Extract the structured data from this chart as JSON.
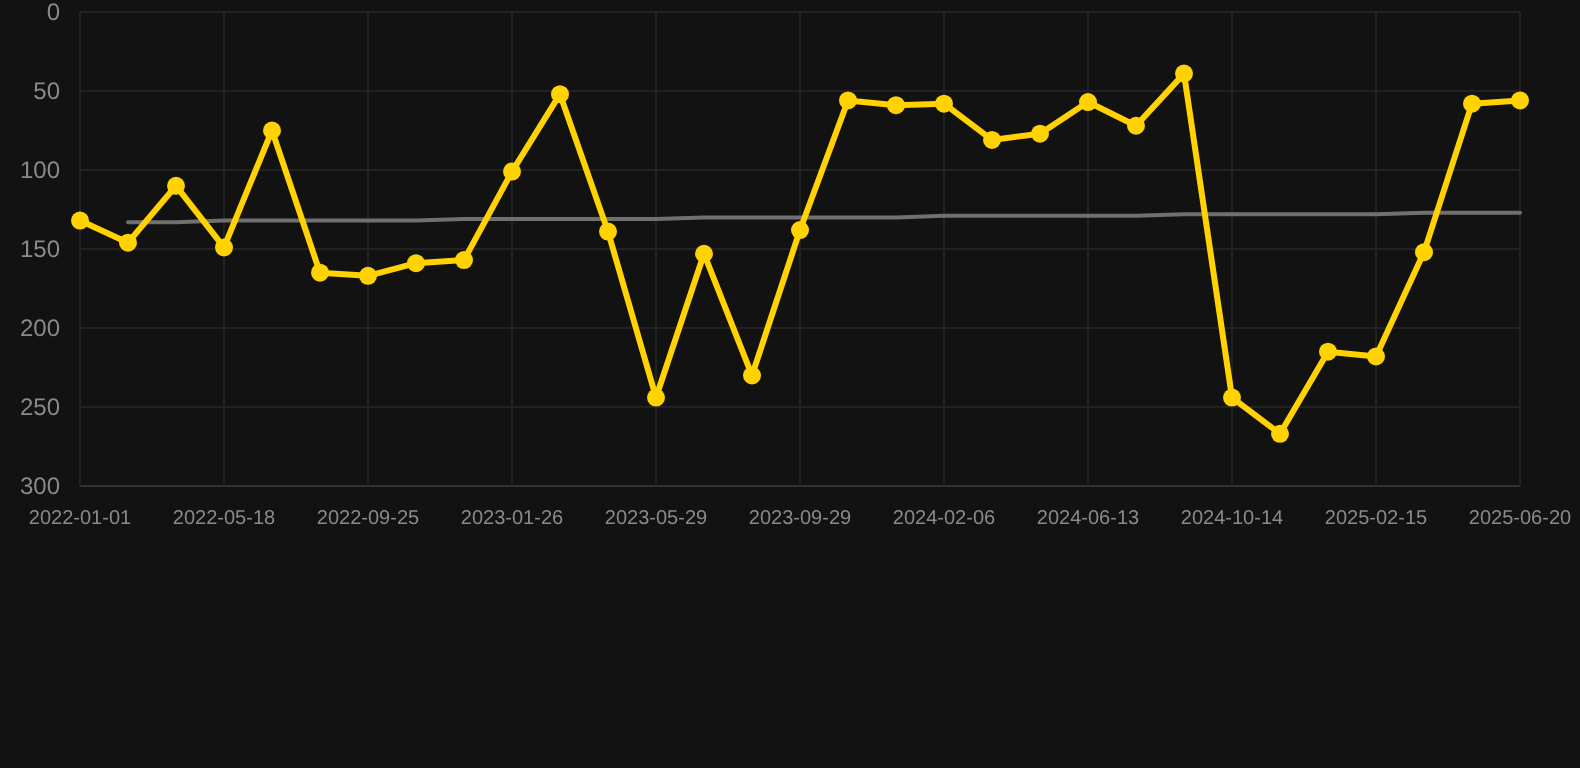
{
  "chart_data": {
    "type": "line",
    "categories": [
      "2022-01-01",
      null,
      null,
      "2022-05-18",
      null,
      null,
      "2022-09-25",
      null,
      null,
      "2023-01-26",
      null,
      null,
      "2023-05-29",
      null,
      null,
      "2023-09-29",
      null,
      null,
      "2024-02-06",
      null,
      null,
      "2024-06-13",
      null,
      null,
      "2024-10-14",
      null,
      null,
      "2025-02-15",
      null,
      null,
      "2025-06-20"
    ],
    "series": [
      {
        "color": "#ffd200",
        "marker": "circle",
        "values": [
          132,
          146,
          110,
          149,
          75,
          165,
          167,
          159,
          157,
          101,
          52,
          139,
          244,
          153,
          230,
          138,
          56,
          59,
          58,
          81,
          77,
          57,
          72,
          39,
          244,
          267,
          215,
          218,
          152,
          58,
          56
        ]
      },
      {
        "color": "#707070",
        "marker": "none",
        "values": [
          null,
          133,
          133,
          132,
          132,
          132,
          132,
          132,
          131,
          131,
          131,
          131,
          131,
          130,
          130,
          130,
          130,
          130,
          129,
          129,
          129,
          129,
          129,
          128,
          128,
          128,
          128,
          128,
          127,
          127,
          127
        ]
      }
    ],
    "ylim": [
      300,
      0
    ],
    "yticks": [
      0,
      50,
      100,
      150,
      200,
      250,
      300
    ],
    "grid": true
  }
}
